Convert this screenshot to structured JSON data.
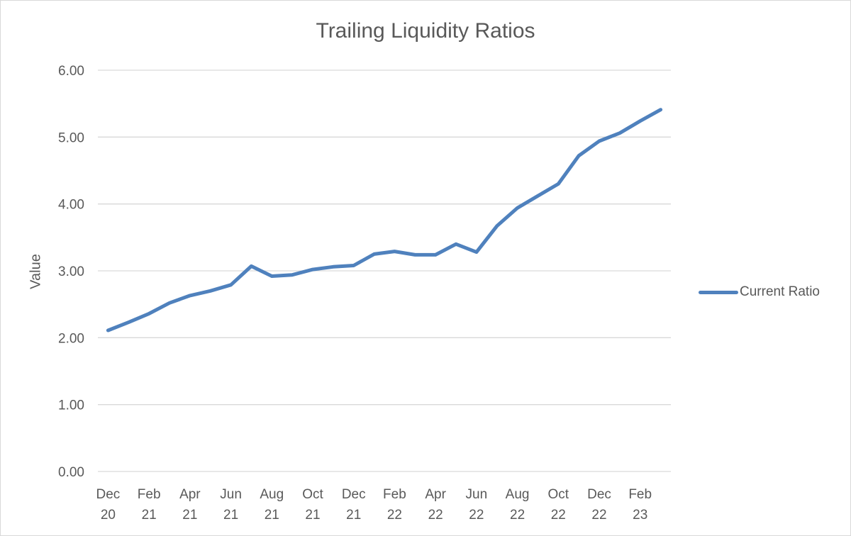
{
  "chart_data": {
    "type": "line",
    "title": "Trailing Liquidity Ratios",
    "xlabel": "",
    "ylabel": "Value",
    "ylim": [
      0,
      6
    ],
    "yticks": [
      "0.00",
      "1.00",
      "2.00",
      "3.00",
      "4.00",
      "5.00",
      "6.00"
    ],
    "xtick_labels": [
      [
        "Dec",
        "20"
      ],
      [
        "Feb",
        "21"
      ],
      [
        "Apr",
        "21"
      ],
      [
        "Jun",
        "21"
      ],
      [
        "Aug",
        "21"
      ],
      [
        "Oct",
        "21"
      ],
      [
        "Dec",
        "21"
      ],
      [
        "Feb",
        "22"
      ],
      [
        "Apr",
        "22"
      ],
      [
        "Jun",
        "22"
      ],
      [
        "Aug",
        "22"
      ],
      [
        "Oct",
        "22"
      ],
      [
        "Dec",
        "22"
      ],
      [
        "Feb",
        "23"
      ]
    ],
    "x": [
      "Dec 20",
      "Jan 21",
      "Feb 21",
      "Mar 21",
      "Apr 21",
      "May 21",
      "Jun 21",
      "Jul 21",
      "Aug 21",
      "Sep 21",
      "Oct 21",
      "Nov 21",
      "Dec 21",
      "Jan 22",
      "Feb 22",
      "Mar 22",
      "Apr 22",
      "May 22",
      "Jun 22",
      "Jul 22",
      "Aug 22",
      "Sep 22",
      "Oct 22",
      "Nov 22",
      "Dec 22",
      "Jan 23",
      "Feb 23",
      "Mar 23"
    ],
    "series": [
      {
        "name": "Current Ratio",
        "color": "#4f81bd",
        "values": [
          2.11,
          2.23,
          2.36,
          2.52,
          2.63,
          2.7,
          2.79,
          3.07,
          2.92,
          2.94,
          3.02,
          3.06,
          3.08,
          3.25,
          3.29,
          3.24,
          3.24,
          3.4,
          3.28,
          3.67,
          3.94,
          4.12,
          4.3,
          4.72,
          4.94,
          5.06,
          5.24,
          5.41
        ]
      }
    ],
    "grid": true,
    "legend_position": "right"
  }
}
